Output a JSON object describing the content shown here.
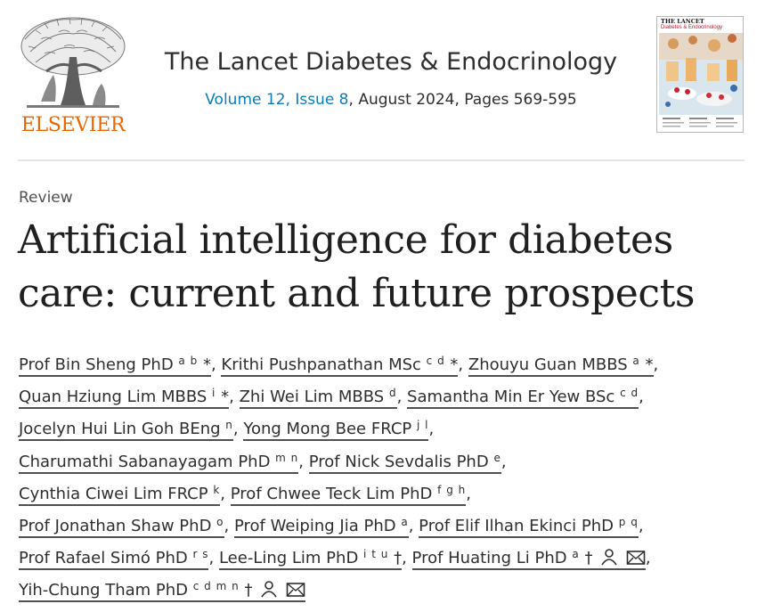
{
  "header": {
    "publisher": "ELSEVIER",
    "journal_title": "The Lancet Diabetes & Endocrinology",
    "volume": "Volume 12, Issue 8",
    "issue_details": ", August 2024, Pages 569-595",
    "cover": {
      "brand": "THE LANCET",
      "subtitle": "Diabetes & Endocrinology"
    }
  },
  "article": {
    "type": "Review",
    "title_line1": "Artificial intelligence for diabetes",
    "title_line2": "care: current and future prospects"
  },
  "authors": [
    {
      "name": "Prof Bin Sheng PhD",
      "sup": "a b",
      "mark": "*"
    },
    {
      "name": "Krithi Pushpanathan MSc",
      "sup": "c d",
      "mark": "*"
    },
    {
      "name": "Zhouyu Guan MBBS",
      "sup": "a",
      "mark": "*"
    },
    {
      "name": "Quan Hziung Lim MBBS",
      "sup": "i",
      "mark": "*"
    },
    {
      "name": "Zhi Wei Lim MBBS",
      "sup": "d",
      "mark": ""
    },
    {
      "name": "Samantha Min Er Yew BSc",
      "sup": "c d",
      "mark": ""
    },
    {
      "name": "Jocelyn Hui Lin Goh BEng",
      "sup": "n",
      "mark": ""
    },
    {
      "name": "Yong Mong Bee FRCP",
      "sup": "j l",
      "mark": ""
    },
    {
      "name": "Charumathi Sabanayagam PhD",
      "sup": "m n",
      "mark": ""
    },
    {
      "name": "Prof Nick Sevdalis PhD",
      "sup": "e",
      "mark": ""
    },
    {
      "name": "Cynthia Ciwei Lim FRCP",
      "sup": "k",
      "mark": ""
    },
    {
      "name": "Prof Chwee Teck Lim PhD",
      "sup": "f g h",
      "mark": ""
    },
    {
      "name": "Prof Jonathan Shaw PhD",
      "sup": "o",
      "mark": ""
    },
    {
      "name": "Prof Weiping Jia PhD",
      "sup": "a",
      "mark": ""
    },
    {
      "name": "Prof Elif Ilhan Ekinci PhD",
      "sup": "p q",
      "mark": ""
    },
    {
      "name": "Prof Rafael Simó PhD",
      "sup": "r s",
      "mark": ""
    },
    {
      "name": "Lee-Ling Lim PhD",
      "sup": "i t u",
      "mark": "†"
    },
    {
      "name": "Prof Huating Li PhD",
      "sup": "a",
      "mark": "†"
    },
    {
      "name": "Yih-Chung Tham PhD",
      "sup": "c d m n",
      "mark": "†"
    }
  ],
  "separators": {
    "comma": ","
  },
  "icons": {
    "person": "person-icon",
    "email": "envelope-icon"
  },
  "colors": {
    "elsevier_orange": "#eb6500",
    "link_blue": "#0c7dbb",
    "text": "#2e2e2e"
  }
}
